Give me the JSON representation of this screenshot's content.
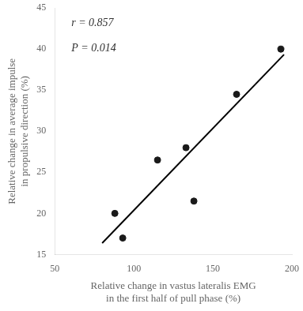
{
  "chart_data": {
    "type": "scatter",
    "x_label": [
      "Relative change in vastus lateralis EMG",
      "in the first half of pull phase (%)"
    ],
    "y_label": [
      "Relative change in average impulse",
      "in propulsive direction (%)"
    ],
    "annotations": [
      "r = 0.857",
      "P = 0.014"
    ],
    "series": [
      {
        "type": "line",
        "color": "#000000",
        "x": [
          80,
          195
        ],
        "values": [
          16.3775,
          39.3326
        ]
      },
      {
        "type": "scatter",
        "color": "#1a1a1a",
        "x": [
          88,
          93,
          115,
          133,
          138,
          165,
          193
        ],
        "values": [
          20.0,
          17.0,
          26.5,
          28.0,
          21.5,
          34.5,
          40.0
        ]
      }
    ],
    "xlim": [
      50,
      200
    ],
    "ylim": [
      15,
      45
    ],
    "xticks": [
      50,
      100,
      150,
      200
    ],
    "yticks": [
      15,
      20,
      25,
      30,
      35,
      40,
      45
    ],
    "grid": false,
    "background_color": "#ffffff"
  }
}
